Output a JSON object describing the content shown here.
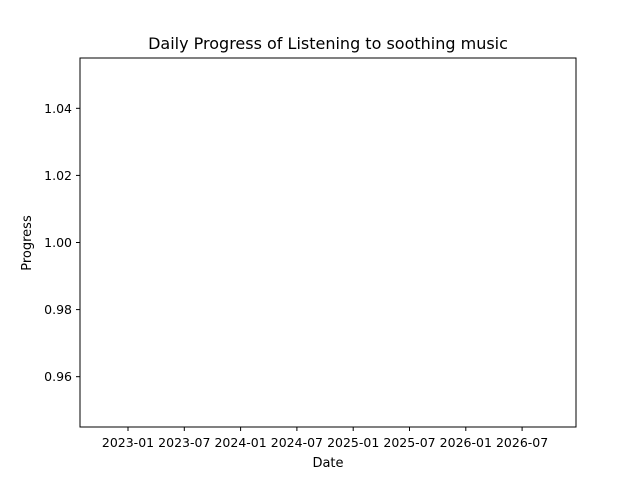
{
  "chart_data": {
    "type": "line",
    "title": "Daily Progress of Listening to soothing music",
    "xlabel": "Date",
    "ylabel": "Progress",
    "x_tick_labels": [
      "2023-01",
      "2023-07",
      "2024-01",
      "2024-07",
      "2025-01",
      "2025-07",
      "2026-01",
      "2026-07"
    ],
    "y_tick_labels": [
      "0.96",
      "0.98",
      "1.00",
      "1.02",
      "1.04"
    ],
    "y_ticks": [
      0.96,
      0.98,
      1.0,
      1.02,
      1.04
    ],
    "ylim": [
      0.945,
      1.055
    ],
    "grid": false,
    "series": []
  }
}
